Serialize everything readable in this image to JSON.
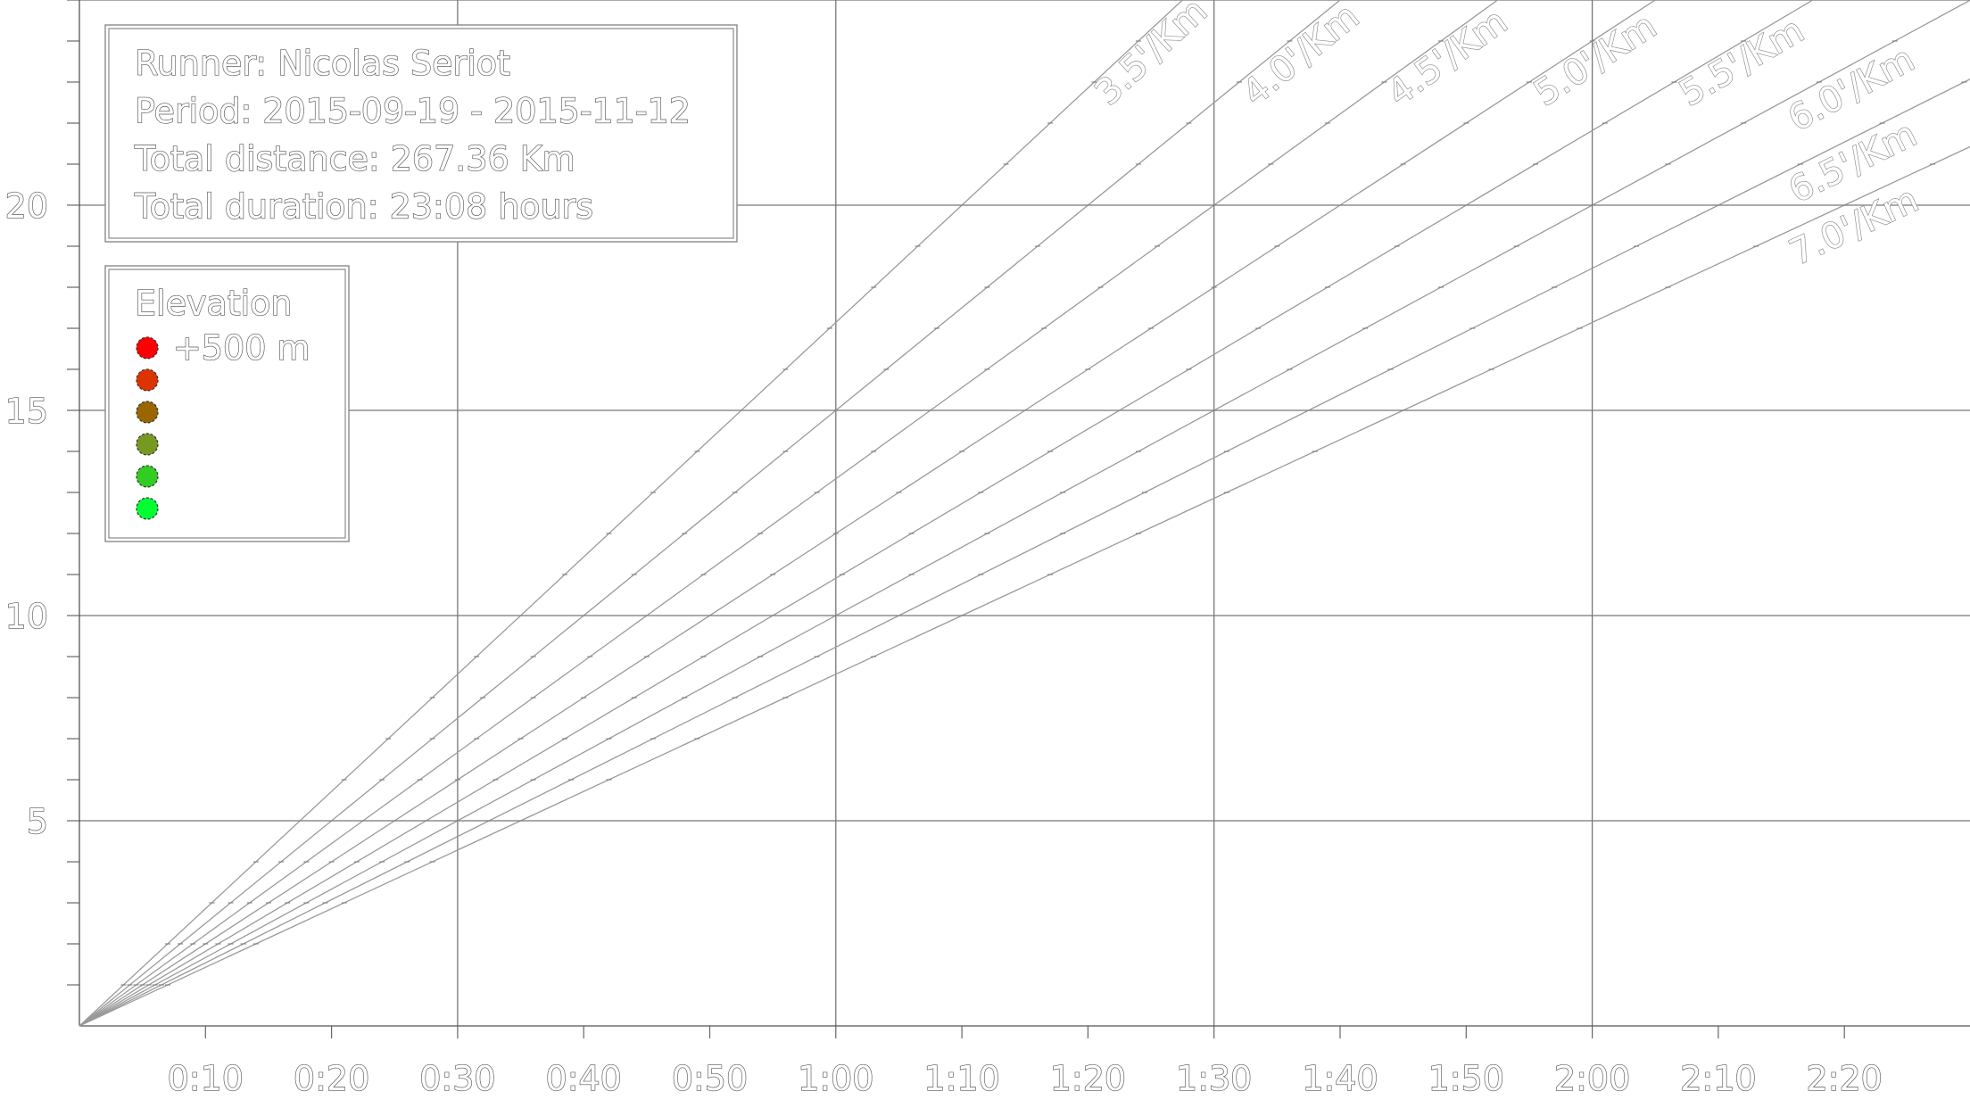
{
  "chart_data": {
    "type": "line",
    "xlabel": "",
    "ylabel": "",
    "x_unit": "minutes",
    "y_unit": "km",
    "xlim": [
      0,
      149
    ],
    "ylim": [
      0,
      25
    ],
    "grid": true,
    "x_tick_labels": [
      {
        "value": 10,
        "label": "0:10"
      },
      {
        "value": 20,
        "label": "0:20"
      },
      {
        "value": 30,
        "label": "0:30"
      },
      {
        "value": 40,
        "label": "0:40"
      },
      {
        "value": 50,
        "label": "0:50"
      },
      {
        "value": 60,
        "label": "1:00"
      },
      {
        "value": 70,
        "label": "1:10"
      },
      {
        "value": 80,
        "label": "1:20"
      },
      {
        "value": 90,
        "label": "1:30"
      },
      {
        "value": 100,
        "label": "1:40"
      },
      {
        "value": 110,
        "label": "1:50"
      },
      {
        "value": 120,
        "label": "2:00"
      },
      {
        "value": 130,
        "label": "2:10"
      },
      {
        "value": 140,
        "label": "2:20"
      }
    ],
    "y_tick_labels": [
      {
        "value": 5,
        "label": "5"
      },
      {
        "value": 10,
        "label": "10"
      },
      {
        "value": 15,
        "label": "15"
      },
      {
        "value": 20,
        "label": "20"
      }
    ],
    "pace_lines": [
      {
        "pace": 3.5,
        "label": "3.5'/Km"
      },
      {
        "pace": 4.0,
        "label": "4.0'/Km"
      },
      {
        "pace": 4.5,
        "label": "4.5'/Km"
      },
      {
        "pace": 5.0,
        "label": "5.0'/Km"
      },
      {
        "pace": 5.5,
        "label": "5.5'/Km"
      },
      {
        "pace": 6.0,
        "label": "6.0'/Km"
      },
      {
        "pace": 6.5,
        "label": "6.5'/Km"
      },
      {
        "pace": 7.0,
        "label": "7.0'/Km"
      }
    ],
    "info_box": [
      "Runner: Nicolas Seriot",
      "Period: 2015-09-19 - 2015-11-12",
      "Total distance: 267.36 Km",
      "Total duration: 23:08 hours"
    ],
    "legend": {
      "title": "Elevation",
      "placement": "top-left",
      "items": [
        {
          "color": "#ff0000",
          "label": "+500 m"
        },
        {
          "color": "#dd3300",
          "label": ""
        },
        {
          "color": "#996600",
          "label": ""
        },
        {
          "color": "#779922",
          "label": ""
        },
        {
          "color": "#33cc22",
          "label": ""
        },
        {
          "color": "#00ff33",
          "label": ""
        }
      ]
    }
  }
}
